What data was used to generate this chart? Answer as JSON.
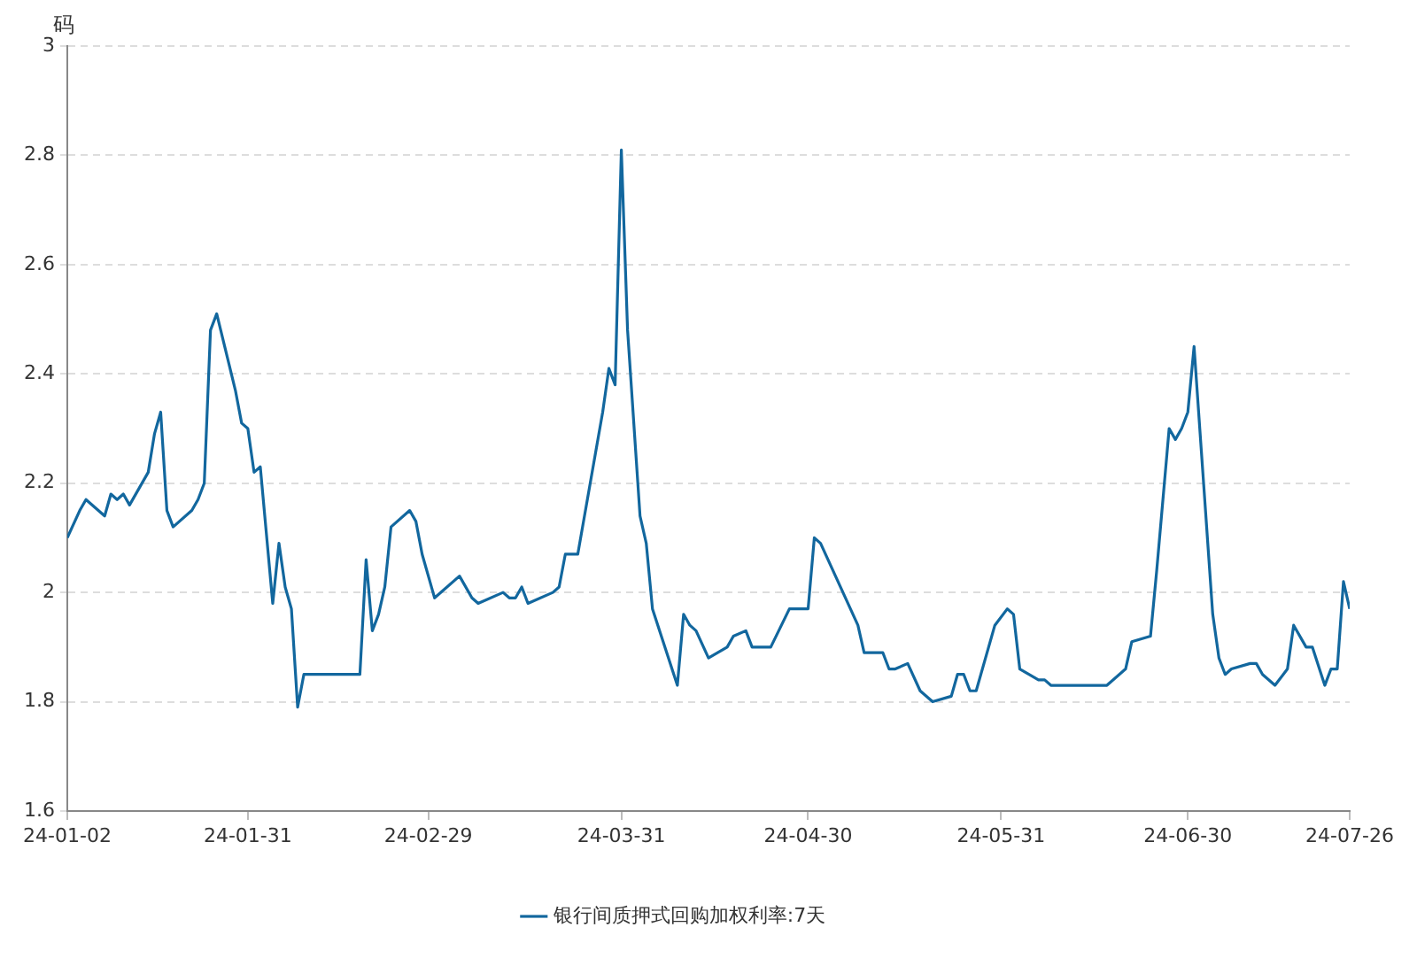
{
  "chart_data": {
    "type": "line",
    "ylabel": "码",
    "x": [
      "--01-02",
      "--01-04",
      "--01-05",
      "--01-08",
      "--01-09",
      "--01-10",
      "--01-11",
      "--01-12",
      "--01-15",
      "--01-16",
      "--01-17",
      "--01-18",
      "--01-19",
      "--01-22",
      "--01-23",
      "--01-24",
      "--01-25",
      "--01-26",
      "--01-29",
      "--01-30",
      "--01-31",
      "--02-01",
      "--02-02",
      "--02-04",
      "--02-05",
      "--02-06",
      "--02-07",
      "--02-08",
      "--02-09",
      "--02-18",
      "--02-19",
      "--02-20",
      "--02-21",
      "--02-22",
      "--02-23",
      "--02-26",
      "--02-27",
      "--02-28",
      "--02-29",
      "--03-01",
      "--03-05",
      "--03-07",
      "--03-08",
      "--03-12",
      "--03-13",
      "--03-14",
      "--03-15",
      "--03-16",
      "--03-20",
      "--03-21",
      "--03-22",
      "--03-24",
      "--03-28",
      "--03-29",
      "--03-30",
      "--03-31",
      "--04-01",
      "--04-03",
      "--04-04",
      "--04-05",
      "--04-09",
      "--04-10",
      "--04-11",
      "--04-12",
      "--04-14",
      "--04-17",
      "--04-18",
      "--04-20",
      "--04-21",
      "--04-24",
      "--04-27",
      "--04-30",
      "--05-01",
      "--05-02",
      "--05-08",
      "--05-09",
      "--05-11",
      "--05-12",
      "--05-13",
      "--05-14",
      "--05-16",
      "--05-18",
      "--05-20",
      "--05-23",
      "--05-24",
      "--05-25",
      "--05-26",
      "--05-27",
      "--05-30",
      "--06-01",
      "--06-02",
      "--06-03",
      "--06-06",
      "--06-07",
      "--06-08",
      "--06-09",
      "--06-10",
      "--06-14",
      "--06-15",
      "--06-17",
      "--06-20",
      "--06-21",
      "--06-24",
      "--06-25",
      "--06-27",
      "--06-28",
      "--06-29",
      "--06-30",
      "--07-01",
      "--07-04",
      "--07-05",
      "--07-06",
      "--07-07",
      "--07-10",
      "--07-11",
      "--07-12",
      "--07-14",
      "--07-16",
      "--07-17",
      "--07-19",
      "--07-20",
      "--07-22",
      "--07-23",
      "--07-24",
      "--07-25",
      "--07-26"
    ],
    "series": [
      {
        "name": "银行间质押式回购加权利率:7天",
        "color": "#12679e",
        "values": [
          2.1,
          2.15,
          2.17,
          2.14,
          2.18,
          2.17,
          2.18,
          2.16,
          2.22,
          2.29,
          2.33,
          2.15,
          2.12,
          2.15,
          2.17,
          2.2,
          2.48,
          2.51,
          2.37,
          2.31,
          2.3,
          2.22,
          2.23,
          1.98,
          2.09,
          2.01,
          1.97,
          1.79,
          1.85,
          1.85,
          2.06,
          1.93,
          1.96,
          2.01,
          2.12,
          2.15,
          2.13,
          2.07,
          2.03,
          1.99,
          2.03,
          1.99,
          1.98,
          2.0,
          1.99,
          1.99,
          2.01,
          1.98,
          2.0,
          2.01,
          2.07,
          2.07,
          2.33,
          2.41,
          2.38,
          2.81,
          2.48,
          2.14,
          2.09,
          1.97,
          1.83,
          1.96,
          1.94,
          1.93,
          1.88,
          1.9,
          1.92,
          1.93,
          1.9,
          1.9,
          1.97,
          1.97,
          2.1,
          2.09,
          1.94,
          1.89,
          1.89,
          1.89,
          1.86,
          1.86,
          1.87,
          1.82,
          1.8,
          1.81,
          1.85,
          1.85,
          1.82,
          1.82,
          1.94,
          1.97,
          1.96,
          1.86,
          1.84,
          1.84,
          1.83,
          1.83,
          1.83,
          1.83,
          1.83,
          1.83,
          1.86,
          1.91,
          1.92,
          2.04,
          2.3,
          2.28,
          2.3,
          2.33,
          2.45,
          1.96,
          1.88,
          1.85,
          1.86,
          1.87,
          1.87,
          1.85,
          1.83,
          1.86,
          1.94,
          1.9,
          1.9,
          1.83,
          1.86,
          1.86,
          2.02,
          1.97
        ]
      }
    ],
    "xlim": [
      "--01-02",
      "--07-26"
    ],
    "xticks": [
      {
        "value": "--01-02",
        "label": "24-01-02"
      },
      {
        "value": "--01-31",
        "label": "24-01-31"
      },
      {
        "value": "--02-29",
        "label": "24-02-29"
      },
      {
        "value": "--03-31",
        "label": "24-03-31"
      },
      {
        "value": "--04-30",
        "label": "24-04-30"
      },
      {
        "value": "--05-31",
        "label": "24-05-31"
      },
      {
        "value": "--06-30",
        "label": "24-06-30"
      },
      {
        "value": "--07-26",
        "label": "24-07-26"
      }
    ],
    "ylim": [
      1.6,
      3
    ],
    "yticks": [
      1.6,
      1.8,
      2,
      2.2,
      2.4,
      2.6,
      2.8,
      3
    ],
    "grid": "y",
    "legend": "bottom",
    "marker": "none",
    "line_style": "solid"
  }
}
